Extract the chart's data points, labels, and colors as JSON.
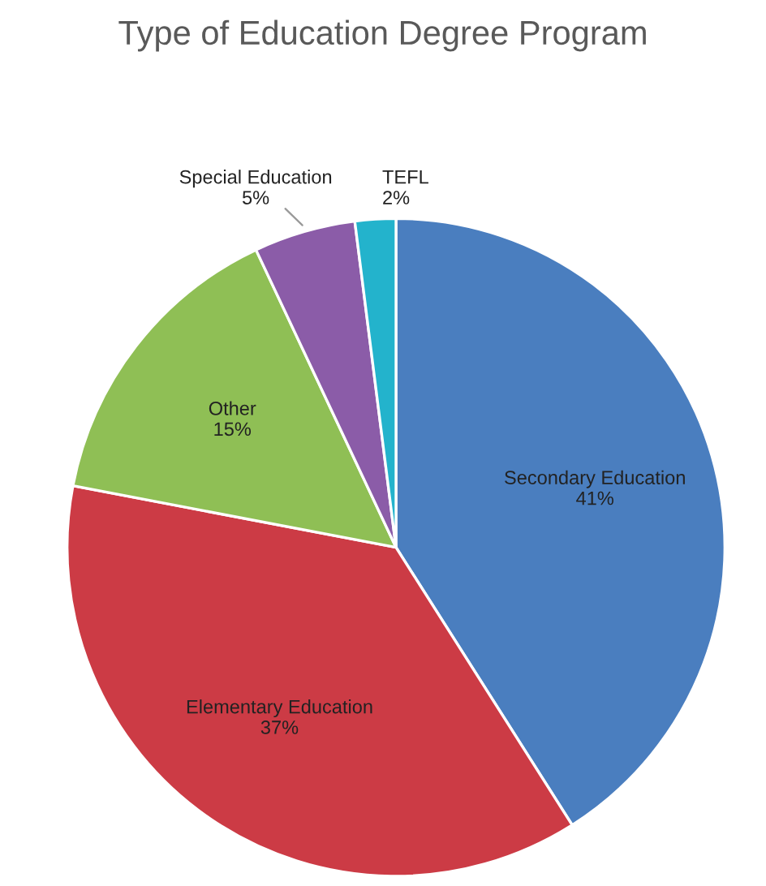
{
  "chart_data": {
    "type": "pie",
    "title": "Type of Education Degree Program",
    "categories": [
      "Secondary Education",
      "Elementary Education",
      "Other",
      "Special Education",
      "TEFL"
    ],
    "values": [
      41,
      37,
      15,
      5,
      2
    ],
    "value_labels": [
      "41%",
      "37%",
      "15%",
      "5%",
      "2%"
    ],
    "colors": [
      "#4a7ebf",
      "#cc3b45",
      "#8fbf55",
      "#8b5ca8",
      "#23b3cc"
    ]
  }
}
